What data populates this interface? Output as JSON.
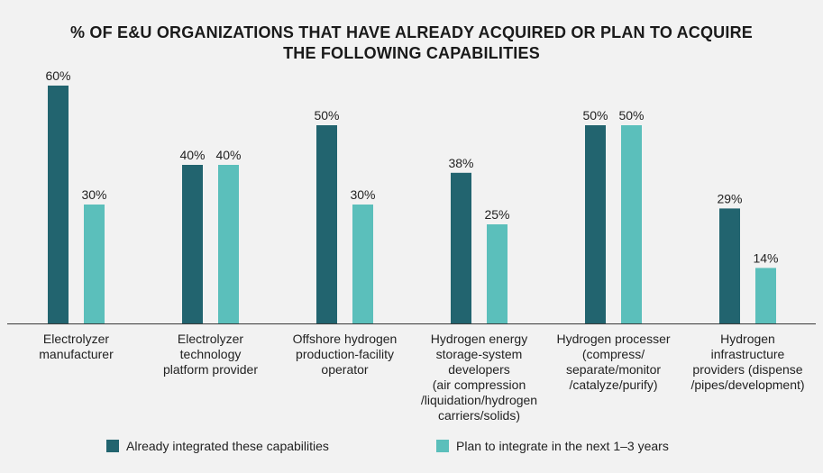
{
  "chart_data": {
    "type": "bar",
    "title_lines": [
      "% OF E&U ORGANIZATIONS THAT HAVE ALREADY ACQUIRED OR PLAN TO ACQUIRE",
      "THE FOLLOWING CAPABILITIES"
    ],
    "categories": [
      [
        "Electrolyzer",
        "manufacturer"
      ],
      [
        "Electrolyzer",
        "technology",
        "platform provider"
      ],
      [
        "Offshore hydrogen",
        "production-facility",
        "operator"
      ],
      [
        "Hydrogen energy",
        "storage-system",
        "developers",
        "(air compression",
        "/liquidation/hydrogen",
        "carriers/solids)"
      ],
      [
        "Hydrogen processer",
        "(compress/",
        "separate/monitor",
        "/catalyze/purify)"
      ],
      [
        "Hydrogen",
        "infrastructure",
        "providers (dispense",
        "/pipes/development)"
      ]
    ],
    "series": [
      {
        "name": "Already integrated these capabilities",
        "color": "#22646f",
        "values": [
          60,
          40,
          50,
          38,
          50,
          29
        ],
        "labels": [
          "60%",
          "40%",
          "50%",
          "38%",
          "50%",
          "29%"
        ]
      },
      {
        "name": "Plan to integrate in the next 1–3 years",
        "color": "#5bbfbb",
        "values": [
          30,
          40,
          30,
          25,
          50,
          14
        ],
        "labels": [
          "30%",
          "40%",
          "30%",
          "25%",
          "50%",
          "14%"
        ]
      }
    ],
    "ylim": [
      0,
      60
    ],
    "grid": false,
    "legend_position": "bottom"
  }
}
